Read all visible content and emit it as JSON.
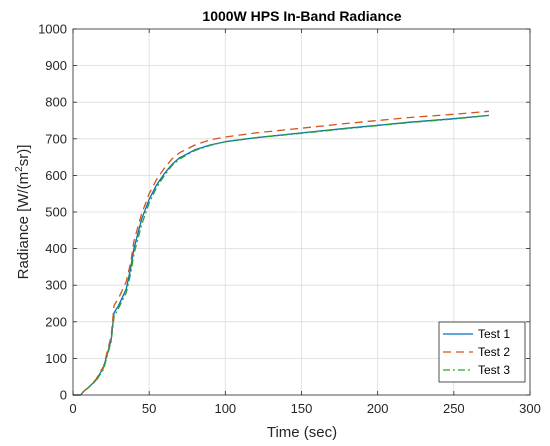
{
  "chart_data": {
    "type": "line",
    "title": "1000W HPS In-Band Radiance",
    "xlabel": "Time (sec)",
    "ylabel_main": "Radiance [W/(m",
    "ylabel_sup": "2",
    "ylabel_end": "sr)]",
    "xlim": [
      0,
      300
    ],
    "ylim": [
      0,
      1000
    ],
    "xticks": [
      0,
      50,
      100,
      150,
      200,
      250,
      300
    ],
    "yticks": [
      0,
      100,
      200,
      300,
      400,
      500,
      600,
      700,
      800,
      900,
      1000
    ],
    "grid": true,
    "legend": "bottom-right",
    "series": [
      {
        "name": "Test 1",
        "color": "#0072BD",
        "dash": "solid",
        "x": [
          0,
          5,
          7,
          10,
          15,
          20,
          25,
          27,
          30,
          35,
          38,
          40,
          45,
          50,
          55,
          60,
          65,
          70,
          80,
          90,
          100,
          120,
          150,
          180,
          200,
          220,
          250,
          273
        ],
        "y": [
          0,
          0,
          10,
          20,
          40,
          75,
          150,
          225,
          245,
          290,
          350,
          400,
          480,
          535,
          575,
          605,
          630,
          648,
          670,
          683,
          692,
          703,
          716,
          729,
          737,
          745,
          755,
          764
        ]
      },
      {
        "name": "Test 2",
        "color": "#D95319",
        "dash": "8,5",
        "x": [
          0,
          5,
          7,
          10,
          15,
          20,
          25,
          27,
          30,
          35,
          38,
          40,
          45,
          50,
          55,
          60,
          65,
          70,
          80,
          90,
          100,
          120,
          150,
          180,
          200,
          220,
          250,
          273
        ],
        "y": [
          0,
          0,
          10,
          20,
          42,
          78,
          160,
          245,
          265,
          310,
          365,
          420,
          495,
          550,
          590,
          620,
          645,
          662,
          683,
          697,
          705,
          716,
          729,
          742,
          750,
          758,
          767,
          775
        ]
      },
      {
        "name": "Test 3",
        "color": "#2CA02C",
        "dash": "7,3,2,3",
        "x": [
          0,
          5,
          7,
          10,
          15,
          20,
          25,
          27,
          30,
          35,
          38,
          40,
          45,
          50,
          55,
          60,
          65,
          70,
          80,
          90,
          100,
          120,
          150,
          180,
          200,
          220,
          250,
          273
        ],
        "y": [
          0,
          0,
          10,
          20,
          38,
          70,
          145,
          215,
          238,
          280,
          335,
          385,
          465,
          525,
          568,
          600,
          627,
          645,
          668,
          682,
          692,
          703,
          715,
          728,
          736,
          744,
          754,
          764
        ]
      }
    ]
  }
}
